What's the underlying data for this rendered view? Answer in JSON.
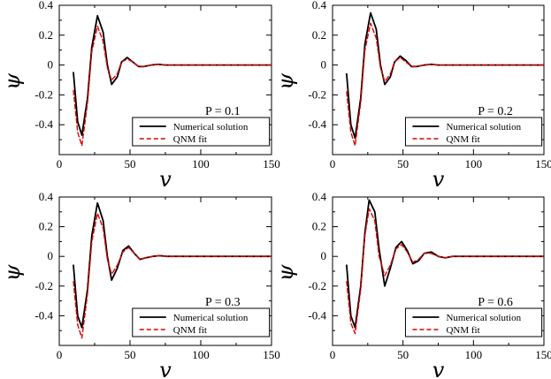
{
  "chart_data": [
    {
      "type": "line",
      "panel_label": "P = 0.1",
      "xlabel": "v",
      "ylabel": "ψ",
      "xlim": [
        0,
        150
      ],
      "ylim": [
        -0.6,
        0.4
      ],
      "xticks": [
        "0",
        "50",
        "100",
        "150"
      ],
      "yticks": [
        "-0.4",
        "-0.2",
        "0",
        "0.2",
        "0.4"
      ],
      "legend": {
        "position": "bottom-right",
        "entries": [
          "Numerical solution",
          "QNM fit"
        ]
      },
      "series": [
        {
          "name": "Numerical solution",
          "color": "#000000",
          "dash": "solid",
          "x": [
            10,
            13,
            16,
            20,
            23,
            27,
            31,
            34,
            37,
            41,
            44,
            48,
            52,
            56,
            60,
            65,
            70,
            75,
            80,
            90,
            100,
            150
          ],
          "y": [
            -0.05,
            -0.38,
            -0.47,
            -0.22,
            0.12,
            0.33,
            0.22,
            0.0,
            -0.13,
            -0.08,
            0.02,
            0.05,
            0.02,
            -0.01,
            -0.01,
            0.0,
            0.005,
            0.0,
            0.0,
            0.0,
            0.0,
            0.0
          ]
        },
        {
          "name": "QNM fit",
          "color": "#e00000",
          "dash": "dashed",
          "x": [
            10,
            13,
            16,
            20,
            23,
            27,
            31,
            34,
            37,
            41,
            44,
            48,
            52,
            56,
            60,
            65,
            70,
            75,
            80,
            90,
            100,
            150
          ],
          "y": [
            -0.17,
            -0.45,
            -0.54,
            -0.25,
            0.09,
            0.26,
            0.16,
            -0.02,
            -0.1,
            -0.06,
            0.02,
            0.04,
            0.02,
            -0.01,
            -0.01,
            0.0,
            0.005,
            0.0,
            0.0,
            0.0,
            0.0,
            0.0
          ]
        }
      ]
    },
    {
      "type": "line",
      "panel_label": "P = 0.2",
      "xlabel": "v",
      "ylabel": "ψ",
      "xlim": [
        0,
        150
      ],
      "ylim": [
        -0.6,
        0.4
      ],
      "xticks": [
        "0",
        "50",
        "100",
        "150"
      ],
      "yticks": [
        "-0.4",
        "-0.2",
        "0",
        "0.2",
        "0.4"
      ],
      "legend": {
        "position": "bottom-right",
        "entries": [
          "Numerical solution",
          "QNM fit"
        ]
      },
      "series": [
        {
          "name": "Numerical solution",
          "color": "#000000",
          "dash": "solid",
          "x": [
            10,
            13,
            16,
            20,
            23,
            27,
            31,
            34,
            37,
            41,
            44,
            48,
            52,
            56,
            60,
            65,
            70,
            75,
            80,
            90,
            100,
            150
          ],
          "y": [
            -0.06,
            -0.4,
            -0.49,
            -0.22,
            0.14,
            0.35,
            0.24,
            0.0,
            -0.13,
            -0.08,
            0.02,
            0.06,
            0.03,
            -0.01,
            -0.01,
            0.0,
            0.005,
            0.0,
            0.0,
            0.0,
            0.0,
            0.0
          ]
        },
        {
          "name": "QNM fit",
          "color": "#e00000",
          "dash": "dashed",
          "x": [
            10,
            13,
            16,
            20,
            23,
            27,
            31,
            34,
            37,
            41,
            44,
            48,
            52,
            56,
            60,
            65,
            70,
            75,
            80,
            90,
            100,
            150
          ],
          "y": [
            -0.18,
            -0.45,
            -0.54,
            -0.25,
            0.1,
            0.28,
            0.18,
            -0.02,
            -0.11,
            -0.06,
            0.02,
            0.05,
            0.02,
            -0.01,
            -0.01,
            0.0,
            0.005,
            0.0,
            0.0,
            0.0,
            0.0,
            0.0
          ]
        }
      ]
    },
    {
      "type": "line",
      "panel_label": "P = 0.3",
      "xlabel": "v",
      "ylabel": "ψ",
      "xlim": [
        0,
        150
      ],
      "ylim": [
        -0.6,
        0.4
      ],
      "xticks": [
        "0",
        "50",
        "100",
        "150"
      ],
      "yticks": [
        "-0.4",
        "-0.2",
        "0",
        "0.2",
        "0.4"
      ],
      "legend": {
        "position": "bottom-right",
        "entries": [
          "Numerical solution",
          "QNM fit"
        ]
      },
      "series": [
        {
          "name": "Numerical solution",
          "color": "#000000",
          "dash": "solid",
          "x": [
            10,
            13,
            16,
            20,
            23,
            27,
            31,
            34,
            37,
            41,
            45,
            49,
            53,
            57,
            61,
            66,
            71,
            76,
            82,
            90,
            100,
            150
          ],
          "y": [
            -0.06,
            -0.4,
            -0.48,
            -0.22,
            0.14,
            0.36,
            0.24,
            0.0,
            -0.16,
            -0.08,
            0.04,
            0.07,
            0.02,
            -0.02,
            -0.01,
            0.0,
            0.005,
            0.0,
            0.0,
            0.0,
            0.0,
            0.0
          ]
        },
        {
          "name": "QNM fit",
          "color": "#e00000",
          "dash": "dashed",
          "x": [
            10,
            13,
            16,
            20,
            23,
            27,
            31,
            34,
            37,
            41,
            45,
            49,
            53,
            57,
            61,
            66,
            71,
            76,
            82,
            90,
            100,
            150
          ],
          "y": [
            -0.17,
            -0.46,
            -0.55,
            -0.25,
            0.1,
            0.29,
            0.19,
            -0.02,
            -0.12,
            -0.06,
            0.03,
            0.06,
            0.02,
            -0.02,
            -0.01,
            0.0,
            0.005,
            0.0,
            0.0,
            0.0,
            0.0,
            0.0
          ]
        }
      ]
    },
    {
      "type": "line",
      "panel_label": "P = 0.6",
      "xlabel": "v",
      "ylabel": "ψ",
      "xlim": [
        0,
        150
      ],
      "ylim": [
        -0.6,
        0.4
      ],
      "xticks": [
        "0",
        "50",
        "100",
        "150"
      ],
      "yticks": [
        "-0.4",
        "-0.2",
        "0",
        "0.2",
        "0.4"
      ],
      "legend": {
        "position": "bottom-right",
        "entries": [
          "Numerical solution",
          "QNM fit"
        ]
      },
      "series": [
        {
          "name": "Numerical solution",
          "color": "#000000",
          "dash": "solid",
          "x": [
            10,
            13,
            16,
            20,
            23,
            26,
            30,
            33,
            37,
            41,
            45,
            49,
            53,
            57,
            61,
            65,
            70,
            75,
            80,
            85,
            90,
            100,
            150
          ],
          "y": [
            -0.06,
            -0.4,
            -0.48,
            -0.2,
            0.16,
            0.38,
            0.3,
            0.05,
            -0.2,
            -0.08,
            0.06,
            0.1,
            0.04,
            -0.05,
            -0.03,
            0.02,
            0.03,
            0.0,
            -0.01,
            0.0,
            0.0,
            0.0,
            0.0
          ]
        },
        {
          "name": "QNM fit",
          "color": "#e00000",
          "dash": "dashed",
          "x": [
            10,
            13,
            16,
            20,
            23,
            26,
            30,
            33,
            37,
            41,
            45,
            49,
            53,
            57,
            61,
            65,
            70,
            75,
            80,
            85,
            90,
            100,
            150
          ],
          "y": [
            -0.17,
            -0.45,
            -0.52,
            -0.22,
            0.14,
            0.32,
            0.24,
            0.0,
            -0.13,
            -0.06,
            0.05,
            0.08,
            0.03,
            -0.04,
            -0.02,
            0.02,
            0.02,
            0.0,
            -0.01,
            0.0,
            0.0,
            0.0,
            0.0
          ]
        }
      ]
    }
  ]
}
